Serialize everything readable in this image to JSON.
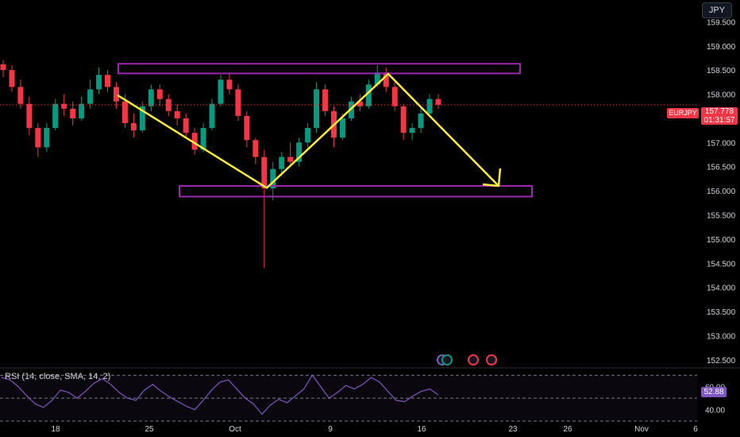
{
  "currency_button": "JPY",
  "symbol_label": "EURJPY",
  "last_price": "157.778",
  "countdown": "01:31:57",
  "rsi_legend": "RSI (14, close, SMA, 14, 2)",
  "rsi_value": "52.88",
  "colors": {
    "bullish": "#089981",
    "bearish": "#f23645",
    "zone": "#9c27b0",
    "arrow": "#ffeb3b",
    "rsi": "#7e57c2"
  },
  "chart_data": [
    {
      "type": "candlestick",
      "title": "",
      "price_axis": {
        "ticks": [
          "159.500",
          "159.000",
          "158.500",
          "158.000",
          "157.500",
          "157.000",
          "156.500",
          "156.000",
          "155.500",
          "155.000",
          "154.500",
          "154.000",
          "153.500",
          "153.000",
          "152.500"
        ],
        "range": [
          152.35,
          159.95
        ]
      },
      "time_axis": {
        "ticks": [
          "18",
          "25",
          "Oct",
          "9",
          "16",
          "23",
          "26",
          "Nov",
          "6"
        ]
      },
      "series_ohlc_approx": [
        [
          158.62,
          158.7,
          158.35,
          158.5
        ],
        [
          158.5,
          158.6,
          158.05,
          158.15
        ],
        [
          158.15,
          158.3,
          157.7,
          157.8
        ],
        [
          157.8,
          157.95,
          157.15,
          157.3
        ],
        [
          157.3,
          157.4,
          156.7,
          156.9
        ],
        [
          156.9,
          157.4,
          156.8,
          157.3
        ],
        [
          157.3,
          157.9,
          157.25,
          157.8
        ],
        [
          157.8,
          158.0,
          157.55,
          157.7
        ],
        [
          157.7,
          157.85,
          157.35,
          157.5
        ],
        [
          157.5,
          157.95,
          157.45,
          157.8
        ],
        [
          157.8,
          158.3,
          157.7,
          158.1
        ],
        [
          158.1,
          158.55,
          158.0,
          158.4
        ],
        [
          158.4,
          158.5,
          158.05,
          158.15
        ],
        [
          158.15,
          158.25,
          157.7,
          157.85
        ],
        [
          157.85,
          158.0,
          157.3,
          157.4
        ],
        [
          157.4,
          157.6,
          157.1,
          157.25
        ],
        [
          157.25,
          157.85,
          157.2,
          157.75
        ],
        [
          157.75,
          158.2,
          157.65,
          158.1
        ],
        [
          158.1,
          158.2,
          157.75,
          157.9
        ],
        [
          157.9,
          158.0,
          157.55,
          157.65
        ],
        [
          157.65,
          157.8,
          157.35,
          157.5
        ],
        [
          157.5,
          157.6,
          157.1,
          157.2
        ],
        [
          157.2,
          157.3,
          156.75,
          156.85
        ],
        [
          156.85,
          157.4,
          156.8,
          157.3
        ],
        [
          157.3,
          157.9,
          157.25,
          157.8
        ],
        [
          157.8,
          158.4,
          157.75,
          158.3
        ],
        [
          158.3,
          158.45,
          158.0,
          158.1
        ],
        [
          158.1,
          158.2,
          157.45,
          157.55
        ],
        [
          157.55,
          157.65,
          156.9,
          157.05
        ],
        [
          157.05,
          157.1,
          156.55,
          156.7
        ],
        [
          156.7,
          156.85,
          154.4,
          156.05
        ],
        [
          156.05,
          156.6,
          155.8,
          156.45
        ],
        [
          156.45,
          156.8,
          156.3,
          156.7
        ],
        [
          156.7,
          157.0,
          156.55,
          156.6
        ],
        [
          156.6,
          157.1,
          156.5,
          157.0
        ],
        [
          157.0,
          157.4,
          156.9,
          157.3
        ],
        [
          157.3,
          158.25,
          157.2,
          158.1
        ],
        [
          158.1,
          158.2,
          157.55,
          157.65
        ],
        [
          157.65,
          157.75,
          156.9,
          157.1
        ],
        [
          157.1,
          157.6,
          157.05,
          157.5
        ],
        [
          157.5,
          157.95,
          157.45,
          157.85
        ],
        [
          157.85,
          158.0,
          157.65,
          157.75
        ],
        [
          157.75,
          158.3,
          157.7,
          158.2
        ],
        [
          158.2,
          158.6,
          158.15,
          158.45
        ],
        [
          158.45,
          158.55,
          158.05,
          158.15
        ],
        [
          158.15,
          158.25,
          157.65,
          157.75
        ],
        [
          157.75,
          157.8,
          157.05,
          157.2
        ],
        [
          157.2,
          157.4,
          157.05,
          157.3
        ],
        [
          157.3,
          157.7,
          157.2,
          157.6
        ],
        [
          157.6,
          158.0,
          157.55,
          157.9
        ],
        [
          157.9,
          158.0,
          157.7,
          157.78
        ]
      ],
      "annotations": [
        {
          "type": "rectangle",
          "price_range": [
            158.43,
            158.63
          ]
        },
        {
          "type": "rectangle",
          "price_range": [
            155.88,
            156.1
          ]
        },
        {
          "type": "polyline",
          "points_price": [
            157.98,
            156.06,
            158.42,
            156.1
          ]
        }
      ]
    },
    {
      "type": "line",
      "title": "RSI (14, close, SMA, 14, 2)",
      "y_ticks": [
        "60.00",
        "40.00"
      ],
      "ylim": [
        30,
        75
      ],
      "bands": [
        70,
        50,
        30
      ],
      "last_value": 52.88,
      "values": [
        68,
        66,
        60,
        52,
        45,
        42,
        48,
        57,
        55,
        50,
        56,
        63,
        67,
        62,
        55,
        50,
        48,
        57,
        62,
        56,
        51,
        47,
        43,
        40,
        48,
        57,
        64,
        66,
        58,
        50,
        45,
        36,
        44,
        49,
        46,
        52,
        58,
        70,
        60,
        50,
        55,
        61,
        58,
        62,
        68,
        64,
        56,
        48,
        47,
        52,
        56,
        58,
        52.88
      ]
    }
  ]
}
